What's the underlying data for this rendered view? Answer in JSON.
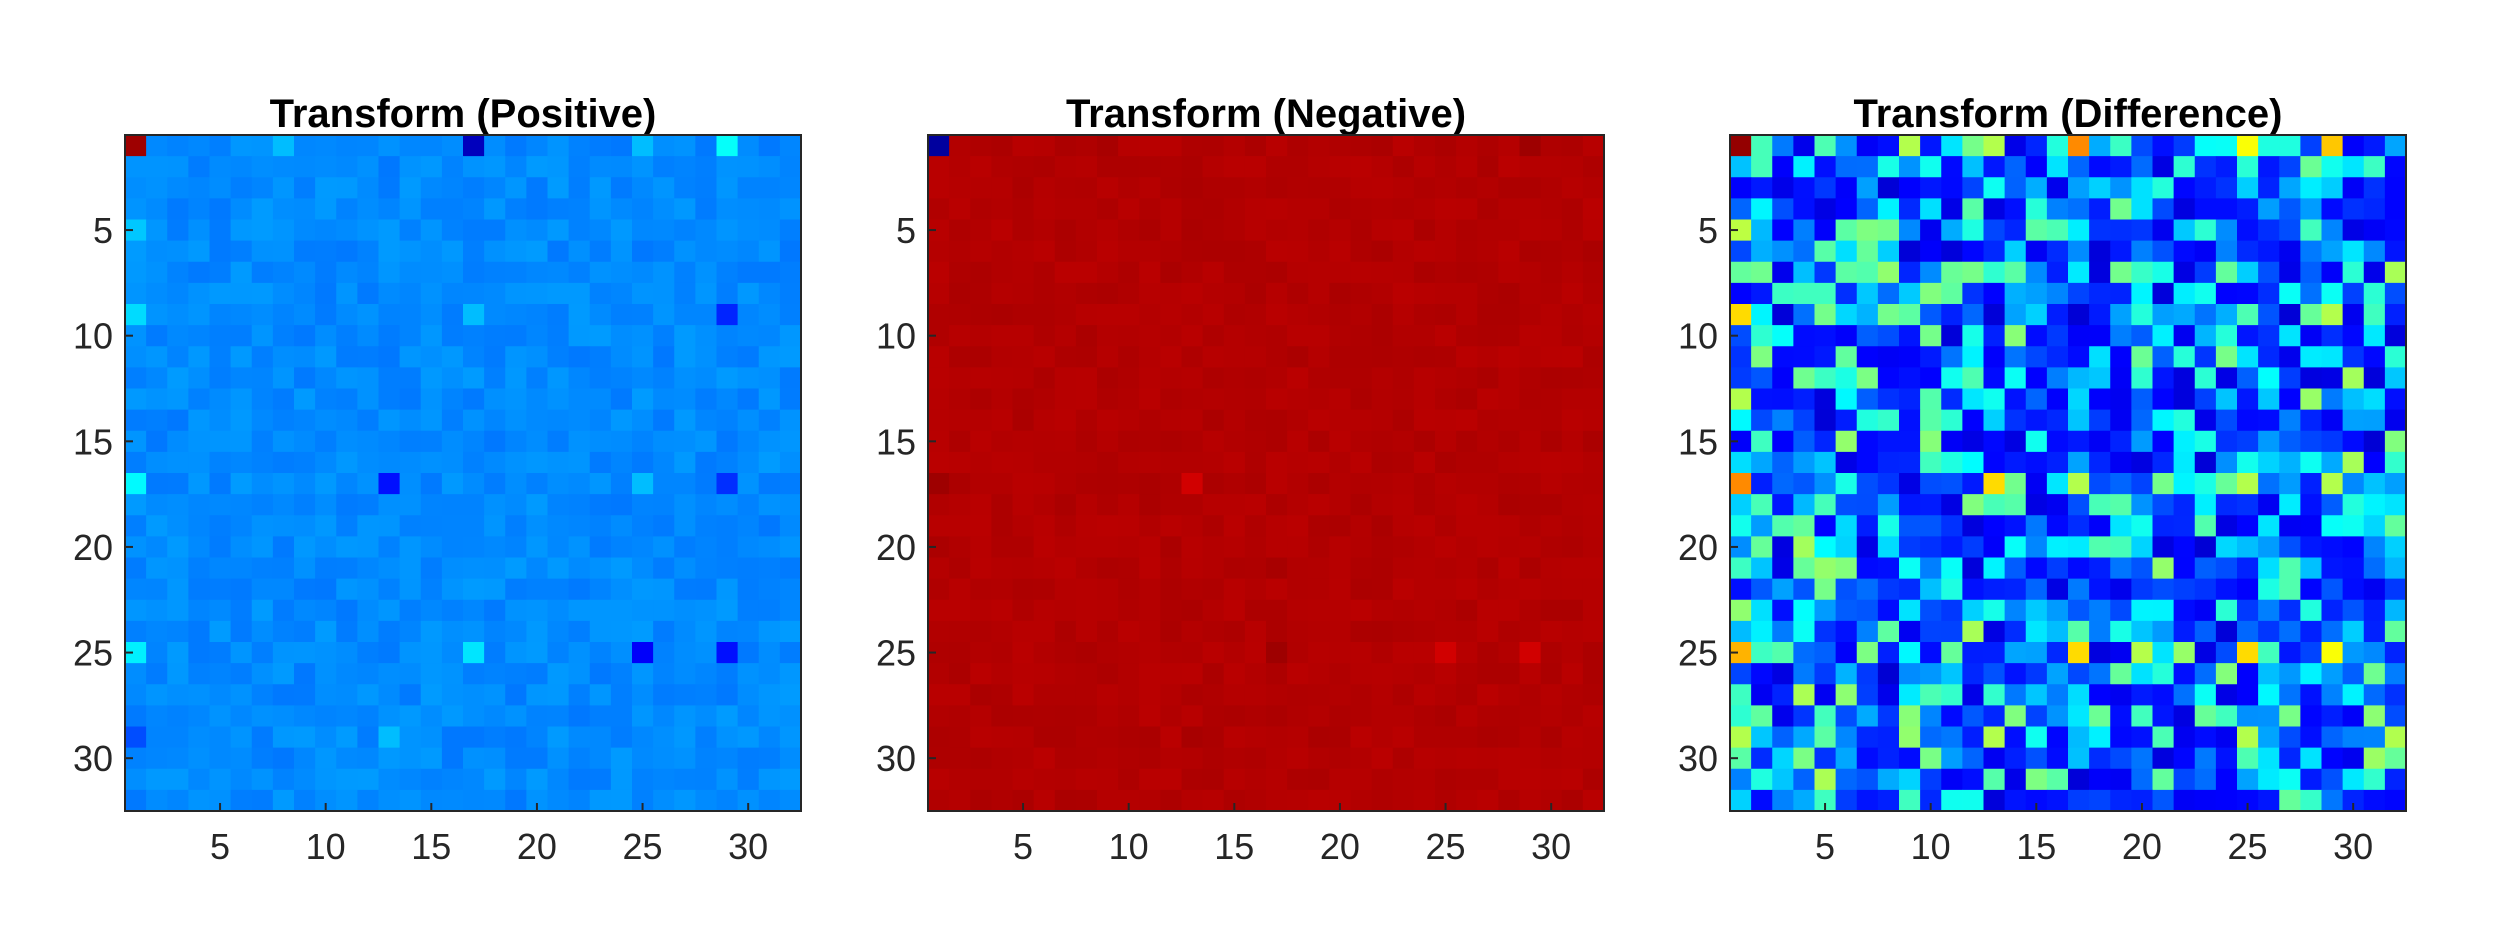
{
  "chart_data": [
    {
      "type": "heatmap",
      "title": "Transform (Positive)",
      "colormap": "jet",
      "rows": 32,
      "cols": 32,
      "xticks": [
        5,
        10,
        15,
        20,
        25,
        30
      ],
      "yticks": [
        5,
        10,
        15,
        20,
        25,
        30
      ],
      "base_level": 0.26,
      "cells": [
        {
          "r": 1,
          "c": 1,
          "v": 0.97
        },
        {
          "r": 1,
          "c": 8,
          "v": 0.31
        },
        {
          "r": 1,
          "c": 17,
          "v": 0.06
        },
        {
          "r": 1,
          "c": 25,
          "v": 0.31
        },
        {
          "r": 1,
          "c": 29,
          "v": 0.38
        },
        {
          "r": 5,
          "c": 1,
          "v": 0.32
        },
        {
          "r": 9,
          "c": 1,
          "v": 0.34
        },
        {
          "r": 9,
          "c": 17,
          "v": 0.31
        },
        {
          "r": 9,
          "c": 29,
          "v": 0.16
        },
        {
          "r": 17,
          "c": 1,
          "v": 0.37
        },
        {
          "r": 17,
          "c": 13,
          "v": 0.14
        },
        {
          "r": 17,
          "c": 25,
          "v": 0.31
        },
        {
          "r": 17,
          "c": 29,
          "v": 0.17
        },
        {
          "r": 25,
          "c": 1,
          "v": 0.36
        },
        {
          "r": 25,
          "c": 17,
          "v": 0.35
        },
        {
          "r": 25,
          "c": 25,
          "v": 0.12
        },
        {
          "r": 25,
          "c": 29,
          "v": 0.14
        },
        {
          "r": 29,
          "c": 13,
          "v": 0.31
        },
        {
          "r": 29,
          "c": 1,
          "v": 0.2
        }
      ]
    },
    {
      "type": "heatmap",
      "title": "Transform (Negative)",
      "colormap": "jet",
      "rows": 32,
      "cols": 32,
      "xticks": [
        5,
        10,
        15,
        20,
        25,
        30
      ],
      "yticks": [
        5,
        10,
        15,
        20,
        25,
        30
      ],
      "base_level": 0.95,
      "cells": [
        {
          "r": 1,
          "c": 1,
          "v": 0.03
        },
        {
          "r": 1,
          "c": 29,
          "v": 0.97
        },
        {
          "r": 1,
          "c": 9,
          "v": 0.96
        },
        {
          "r": 17,
          "c": 1,
          "v": 0.97
        },
        {
          "r": 17,
          "c": 13,
          "v": 0.92
        },
        {
          "r": 25,
          "c": 17,
          "v": 0.97
        },
        {
          "r": 25,
          "c": 25,
          "v": 0.92
        },
        {
          "r": 25,
          "c": 29,
          "v": 0.92
        },
        {
          "r": 21,
          "c": 17,
          "v": 0.96
        },
        {
          "r": 29,
          "c": 13,
          "v": 0.96
        }
      ]
    },
    {
      "type": "heatmap",
      "title": "Transform (Difference)",
      "colormap": "jet",
      "rows": 32,
      "cols": 32,
      "xticks": [
        5,
        10,
        15,
        20,
        25,
        30
      ],
      "yticks": [
        5,
        10,
        15,
        20,
        25,
        30
      ],
      "base_level": 0.2,
      "cells": [
        {
          "r": 1,
          "c": 1,
          "v": 0.98
        },
        {
          "r": 1,
          "c": 17,
          "v": 0.74
        },
        {
          "r": 1,
          "c": 29,
          "v": 0.68
        },
        {
          "r": 1,
          "c": 25,
          "v": 0.62
        },
        {
          "r": 1,
          "c": 13,
          "v": 0.55
        },
        {
          "r": 1,
          "c": 9,
          "v": 0.55
        },
        {
          "r": 1,
          "c": 5,
          "v": 0.45
        },
        {
          "r": 5,
          "c": 1,
          "v": 0.56
        },
        {
          "r": 9,
          "c": 1,
          "v": 0.66
        },
        {
          "r": 13,
          "c": 1,
          "v": 0.55
        },
        {
          "r": 17,
          "c": 1,
          "v": 0.74
        },
        {
          "r": 17,
          "c": 13,
          "v": 0.66
        },
        {
          "r": 17,
          "c": 17,
          "v": 0.55
        },
        {
          "r": 17,
          "c": 25,
          "v": 0.55
        },
        {
          "r": 17,
          "c": 29,
          "v": 0.55
        },
        {
          "r": 25,
          "c": 1,
          "v": 0.7
        },
        {
          "r": 25,
          "c": 17,
          "v": 0.66
        },
        {
          "r": 25,
          "c": 25,
          "v": 0.66
        },
        {
          "r": 25,
          "c": 29,
          "v": 0.62
        },
        {
          "r": 21,
          "c": 5,
          "v": 0.52
        },
        {
          "r": 21,
          "c": 21,
          "v": 0.52
        },
        {
          "r": 29,
          "c": 1,
          "v": 0.55
        },
        {
          "r": 29,
          "c": 13,
          "v": 0.55
        },
        {
          "r": 29,
          "c": 25,
          "v": 0.55
        },
        {
          "r": 9,
          "c": 29,
          "v": 0.55
        },
        {
          "r": 9,
          "c": 25,
          "v": 0.45
        }
      ]
    }
  ]
}
